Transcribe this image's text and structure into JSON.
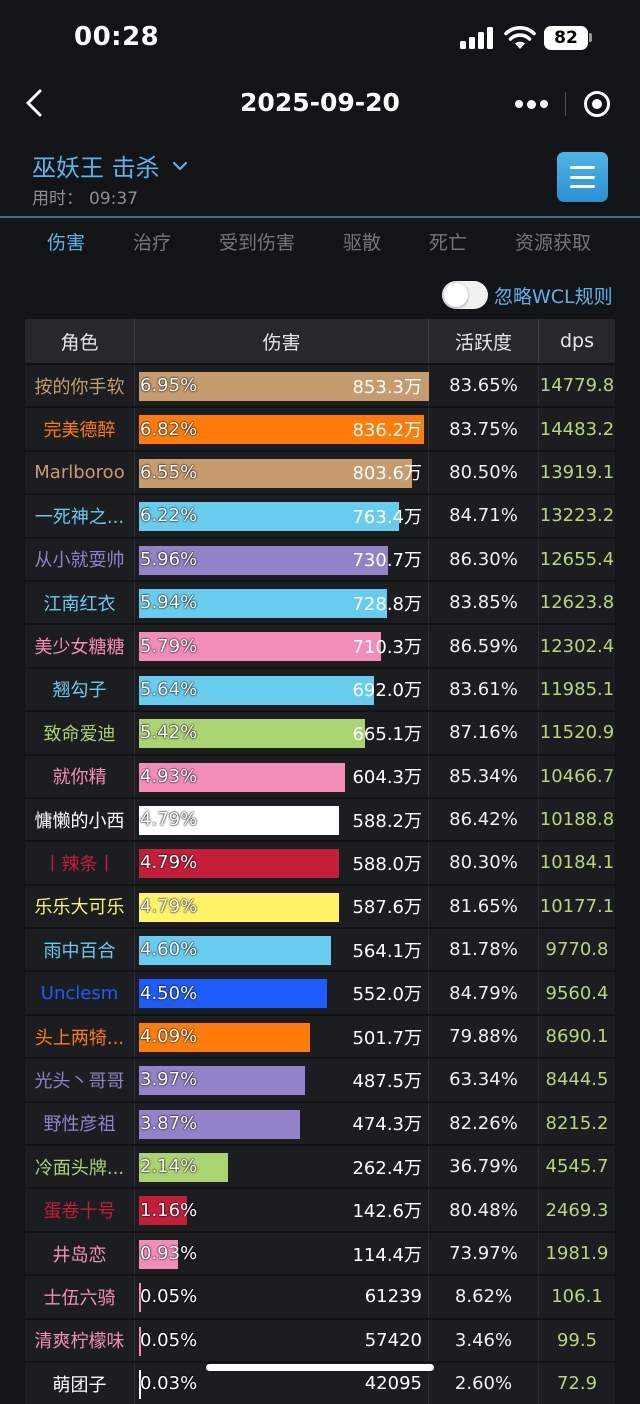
{
  "status_bar": {
    "time": "00:28",
    "battery": "82"
  },
  "nav": {
    "title": "2025-09-20"
  },
  "header": {
    "boss_title": "巫妖王 击杀",
    "elapsed_label": "用时：",
    "elapsed_value": "09:37"
  },
  "tabs": [
    {
      "label": "伤害",
      "active": true
    },
    {
      "label": "治疗",
      "active": false
    },
    {
      "label": "受到伤害",
      "active": false
    },
    {
      "label": "驱散",
      "active": false
    },
    {
      "label": "死亡",
      "active": false
    },
    {
      "label": "资源获取",
      "active": false
    }
  ],
  "toggle": {
    "label": "忽略WCL规则",
    "on": false
  },
  "table": {
    "headers": {
      "name": "角色",
      "damage": "伤害",
      "activity": "活跃度",
      "dps": "dps"
    },
    "max_pct": 6.95,
    "rows": [
      {
        "name": "按的你手软",
        "color": "#c69b6d",
        "pct": "6.95%",
        "amount": "853.3万",
        "activity": "83.65%",
        "dps": "14779.8"
      },
      {
        "name": "完美德醉",
        "color": "#ff7c0a",
        "pct": "6.82%",
        "amount": "836.2万",
        "activity": "83.75%",
        "dps": "14483.2"
      },
      {
        "name": "Marlboroo",
        "color": "#c69b6d",
        "pct": "6.55%",
        "amount": "803.6万",
        "activity": "80.50%",
        "dps": "13919.1"
      },
      {
        "name": "一死神之...",
        "color": "#68ccef",
        "pct": "6.22%",
        "amount": "763.4万",
        "activity": "84.71%",
        "dps": "13223.2"
      },
      {
        "name": "从小就耍帅",
        "color": "#9382c9",
        "pct": "5.96%",
        "amount": "730.7万",
        "activity": "86.30%",
        "dps": "12655.4"
      },
      {
        "name": "江南红衣",
        "color": "#68ccef",
        "pct": "5.94%",
        "amount": "728.8万",
        "activity": "83.85%",
        "dps": "12623.8"
      },
      {
        "name": "美少女糖糖",
        "color": "#f48cba",
        "pct": "5.79%",
        "amount": "710.3万",
        "activity": "86.59%",
        "dps": "12302.4"
      },
      {
        "name": "翘勾子",
        "color": "#68ccef",
        "pct": "5.64%",
        "amount": "692.0万",
        "activity": "83.61%",
        "dps": "11985.1"
      },
      {
        "name": "致命爱迪",
        "color": "#aad372",
        "pct": "5.42%",
        "amount": "665.1万",
        "activity": "87.16%",
        "dps": "11520.9"
      },
      {
        "name": "就你精",
        "color": "#f48cba",
        "pct": "4.93%",
        "amount": "604.3万",
        "activity": "85.34%",
        "dps": "10466.7"
      },
      {
        "name": "慵懒的小西",
        "color": "#ffffff",
        "pct": "4.79%",
        "amount": "588.2万",
        "activity": "86.42%",
        "dps": "10188.8"
      },
      {
        "name": "丨辣条丨",
        "color": "#c41e3a",
        "pct": "4.79%",
        "amount": "588.0万",
        "activity": "80.30%",
        "dps": "10184.1"
      },
      {
        "name": "乐乐大可乐",
        "color": "#fff468",
        "pct": "4.79%",
        "amount": "587.6万",
        "activity": "81.65%",
        "dps": "10177.1"
      },
      {
        "name": "雨中百合",
        "color": "#68ccef",
        "pct": "4.60%",
        "amount": "564.1万",
        "activity": "81.78%",
        "dps": "9770.8"
      },
      {
        "name": "Unclesm",
        "color": "#1f5cff",
        "pct": "4.50%",
        "amount": "552.0万",
        "activity": "84.79%",
        "dps": "9560.4"
      },
      {
        "name": "头上两犄...",
        "color": "#ff7c0a",
        "pct": "4.09%",
        "amount": "501.7万",
        "activity": "79.88%",
        "dps": "8690.1"
      },
      {
        "name": "光头丶哥哥",
        "color": "#9382c9",
        "pct": "3.97%",
        "amount": "487.5万",
        "activity": "63.34%",
        "dps": "8444.5"
      },
      {
        "name": "野性彦祖",
        "color": "#9382c9",
        "pct": "3.87%",
        "amount": "474.3万",
        "activity": "82.26%",
        "dps": "8215.2"
      },
      {
        "name": "冷面头牌...",
        "color": "#aad372",
        "pct": "2.14%",
        "amount": "262.4万",
        "activity": "36.79%",
        "dps": "4545.7"
      },
      {
        "name": "蛋卷十号",
        "color": "#c41e3a",
        "pct": "1.16%",
        "amount": "142.6万",
        "activity": "80.48%",
        "dps": "2469.3"
      },
      {
        "name": "井岛恋",
        "color": "#f48cba",
        "pct": "0.93%",
        "amount": "114.4万",
        "activity": "73.97%",
        "dps": "1981.9"
      },
      {
        "name": "士伍六骑",
        "color": "#f48cba",
        "pct": "0.05%",
        "amount": "61239",
        "activity": "8.62%",
        "dps": "106.1"
      },
      {
        "name": "清爽柠檬味",
        "color": "#f48cba",
        "pct": "0.05%",
        "amount": "57420",
        "activity": "3.46%",
        "dps": "99.5"
      },
      {
        "name": "萌团子",
        "color": "#ffffff",
        "pct": "0.03%",
        "amount": "42095",
        "activity": "2.60%",
        "dps": "72.9"
      }
    ]
  },
  "icons": {
    "back": "chevron-left-icon",
    "more": "more-dots-icon",
    "close": "target-icon",
    "menu": "hamburger-icon",
    "dropdown": "chevron-down-icon"
  }
}
